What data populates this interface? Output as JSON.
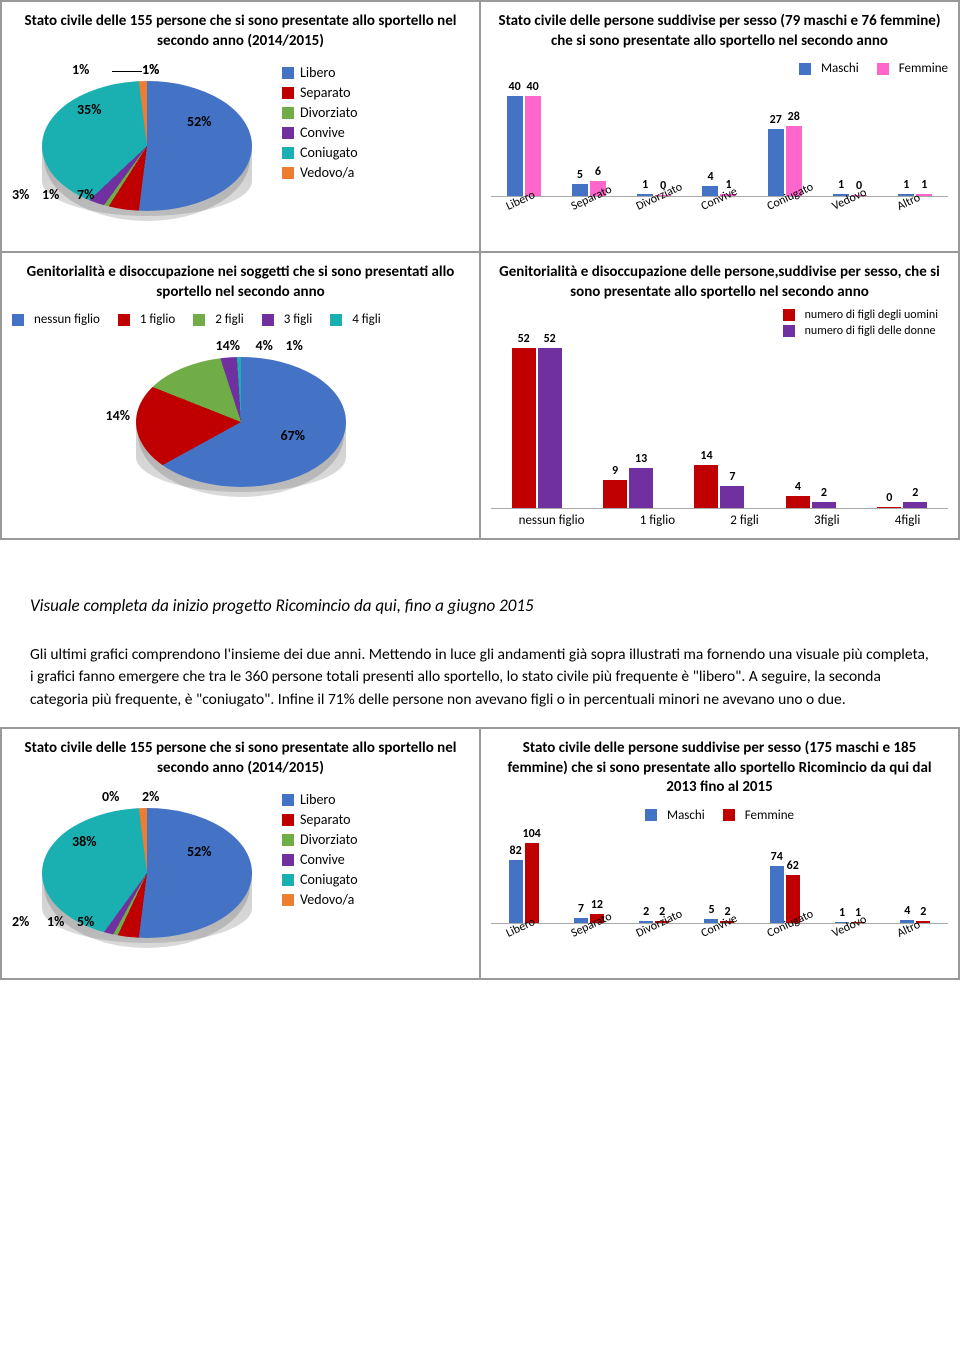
{
  "panel1": {
    "title": "Stato civile delle 155 persone che si sono presentate allo sportello nel secondo anno (2014/2015)",
    "type": "pie",
    "slices": [
      {
        "label": "Libero",
        "pct": 52,
        "color": "#4472c4"
      },
      {
        "label": "Separato",
        "pct": 7,
        "color": "#c00000"
      },
      {
        "label": "Divorziato",
        "pct": 1,
        "color": "#70ad47"
      },
      {
        "label": "Convive",
        "pct": 3,
        "color": "#7030a0"
      },
      {
        "label": "Coniugato",
        "pct": 35,
        "color": "#1aafb0"
      },
      {
        "label": "Vedovo/a",
        "pct": 1,
        "color": "#ed7d31"
      }
    ],
    "extra_label": "1%",
    "background": "#ffffff"
  },
  "panel2": {
    "title": "Stato civile delle persone suddivise per sesso (79 maschi e 76 femmine) che si sono presentate allo sportello nel secondo anno",
    "type": "bar",
    "series": [
      {
        "name": "Maschi",
        "color": "#4472c4"
      },
      {
        "name": "Femmine",
        "color": "#ff66cc"
      }
    ],
    "categories": [
      "Libero",
      "Separato",
      "Divorziato",
      "Convive",
      "Coniugato",
      "Vedovo",
      "Altro"
    ],
    "values": [
      [
        40,
        40
      ],
      [
        5,
        6
      ],
      [
        1,
        0
      ],
      [
        4,
        1
      ],
      [
        27,
        28
      ],
      [
        1,
        0
      ],
      [
        1,
        1
      ]
    ],
    "ymax": 40
  },
  "panel3": {
    "title": "Genitorialità e disoccupazione nei soggetti che si sono presentati allo sportello nel secondo anno",
    "type": "pie",
    "legend_items": [
      {
        "label": "nessun figlio",
        "color": "#4472c4"
      },
      {
        "label": "1 figlio",
        "color": "#c00000"
      },
      {
        "label": "2 figli",
        "color": "#70ad47"
      },
      {
        "label": "3 figli",
        "color": "#7030a0"
      },
      {
        "label": "4 figli",
        "color": "#1aafb0"
      }
    ],
    "slices": [
      {
        "label": "nessun figlio",
        "pct": 67,
        "color": "#4472c4"
      },
      {
        "label": "1 figlio",
        "pct": 14,
        "color": "#c00000"
      },
      {
        "label": "2 figli",
        "pct": 14,
        "color": "#70ad47"
      },
      {
        "label": "3 figli",
        "pct": 4,
        "color": "#7030a0"
      },
      {
        "label": "4 figli",
        "pct": 1,
        "color": "#1aafb0"
      }
    ]
  },
  "panel4": {
    "title": "Genitorialità e disoccupazione delle persone,suddivise per sesso, che si sono presentate allo sportello nel secondo anno",
    "type": "bar",
    "series": [
      {
        "name": "numero di figli degli uomini",
        "color": "#c00000"
      },
      {
        "name": "numero di figli delle donne",
        "color": "#7030a0"
      }
    ],
    "categories": [
      "nessun figlio",
      "1 figlio",
      "2 figli",
      "3figli",
      "4figli"
    ],
    "values": [
      [
        52,
        52
      ],
      [
        9,
        13
      ],
      [
        14,
        7
      ],
      [
        4,
        2
      ],
      [
        0,
        2
      ]
    ],
    "ymax": 52
  },
  "section_heading": "Visuale completa da inizio progetto Ricomincio da qui, fino a giugno 2015",
  "paragraph": "Gli ultimi grafici comprendono l'insieme dei due anni. Mettendo in luce gli andamenti già sopra illustrati ma fornendo una visuale più completa, i grafici fanno emergere che tra le 360 persone totali presenti allo sportello, lo stato civile più frequente è \"libero\". A seguire, la seconda categoria più frequente, è \"coniugato\". Infine il 71% delle persone non avevano figli o in percentuali minori ne avevano uno o due.",
  "panel5": {
    "title": "Stato civile delle 155 persone che si sono presentate allo sportello nel secondo anno (2014/2015)",
    "type": "pie",
    "slices": [
      {
        "label": "Libero",
        "pct": 52,
        "color": "#4472c4"
      },
      {
        "label": "Separato",
        "pct": 5,
        "color": "#c00000"
      },
      {
        "label": "Divorziato",
        "pct": 1,
        "color": "#70ad47"
      },
      {
        "label": "Convive",
        "pct": 2,
        "color": "#7030a0"
      },
      {
        "label": "Coniugato",
        "pct": 38,
        "color": "#1aafb0"
      },
      {
        "label": "Vedovo/a",
        "pct": 0,
        "color": "#ed7d31"
      }
    ],
    "extra_label": "2%"
  },
  "panel6": {
    "title": "Stato civile delle persone suddivise per sesso (175 maschi e 185 femmine) che si sono presentate allo sportello Ricomincio da qui dal 2013 fino al 2015",
    "type": "bar",
    "series": [
      {
        "name": "Maschi",
        "color": "#4472c4"
      },
      {
        "name": "Femmine",
        "color": "#c00000"
      }
    ],
    "categories": [
      "Libero",
      "Separato",
      "Divorziato",
      "Convive",
      "Coniugato",
      "Vedovo",
      "Altro"
    ],
    "values": [
      [
        82,
        104
      ],
      [
        7,
        12
      ],
      [
        2,
        2
      ],
      [
        5,
        2
      ],
      [
        74,
        62
      ],
      [
        1,
        1
      ],
      [
        4,
        2
      ]
    ],
    "ymax": 104
  }
}
